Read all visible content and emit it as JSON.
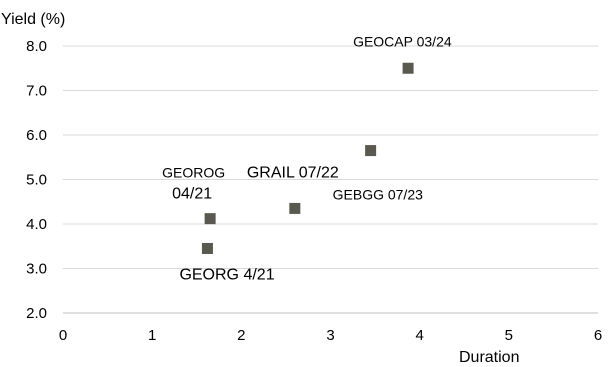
{
  "chart_data": {
    "type": "scatter",
    "xlabel": "Duration",
    "ylabel": "Yield (%)",
    "xlim": [
      0,
      6
    ],
    "ylim": [
      2.0,
      8.0
    ],
    "xticks": [
      "0",
      "1",
      "2",
      "3",
      "4",
      "5",
      "6"
    ],
    "yticks": [
      "2.0",
      "3.0",
      "4.0",
      "5.0",
      "6.0",
      "7.0",
      "8.0"
    ],
    "grid": "horizontal",
    "marker_color": "#595950",
    "points": [
      {
        "label": "GEORG 4/21",
        "x": 1.62,
        "y": 3.45
      },
      {
        "label": "GEOROG 04/21",
        "x": 1.65,
        "y": 4.12
      },
      {
        "label": "GRAIL 07/22",
        "x": 2.6,
        "y": 4.35
      },
      {
        "label": "GEBGG 07/23",
        "x": 3.45,
        "y": 5.65
      },
      {
        "label": "GEOCAP 03/24",
        "x": 3.87,
        "y": 7.5
      }
    ]
  }
}
